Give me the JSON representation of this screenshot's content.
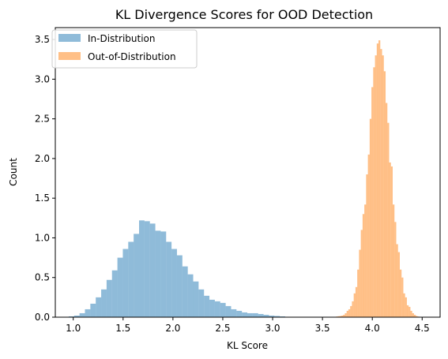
{
  "chart_data": {
    "type": "histogram",
    "title": "KL Divergence Scores for OOD Detection",
    "xlabel": "KL Score",
    "ylabel": "Count",
    "xlim": [
      0.82,
      4.68
    ],
    "ylim": [
      0,
      3.65
    ],
    "xticks": [
      1.0,
      1.5,
      2.0,
      2.5,
      3.0,
      3.5,
      4.0,
      4.5
    ],
    "xtick_labels": [
      "1.0",
      "1.5",
      "2.0",
      "2.5",
      "3.0",
      "3.5",
      "4.0",
      "4.5"
    ],
    "yticks": [
      0.0,
      0.5,
      1.0,
      1.5,
      2.0,
      2.5,
      3.0,
      3.5
    ],
    "ytick_labels": [
      "0.0",
      "0.5",
      "1.0",
      "1.5",
      "2.0",
      "2.5",
      "3.0",
      "3.5"
    ],
    "legend": {
      "placement": "top-left",
      "entries": [
        "In-Distribution",
        "Out-of-Distribution"
      ]
    },
    "series": [
      {
        "name": "In-Distribution",
        "color": "#1f77b4",
        "alpha": 0.5,
        "bin_start": 0.9,
        "bin_width": 0.0543,
        "values": [
          0.005,
          0.01,
          0.02,
          0.05,
          0.1,
          0.17,
          0.25,
          0.35,
          0.47,
          0.59,
          0.75,
          0.86,
          0.95,
          1.05,
          1.22,
          1.21,
          1.18,
          1.09,
          1.08,
          0.95,
          0.86,
          0.78,
          0.64,
          0.54,
          0.45,
          0.35,
          0.27,
          0.22,
          0.2,
          0.18,
          0.14,
          0.1,
          0.08,
          0.06,
          0.05,
          0.05,
          0.04,
          0.03,
          0.02,
          0.015,
          0.01,
          0.005,
          0.003
        ]
      },
      {
        "name": "Out-of-Distribution",
        "color": "#ff7f0e",
        "alpha": 0.5,
        "bin_start": 3.6,
        "bin_width": 0.01778,
        "values": [
          0.003,
          0.005,
          0.008,
          0.012,
          0.015,
          0.02,
          0.03,
          0.05,
          0.08,
          0.1,
          0.14,
          0.2,
          0.3,
          0.38,
          0.6,
          0.85,
          1.1,
          1.3,
          1.42,
          1.8,
          2.05,
          2.5,
          2.9,
          3.15,
          3.3,
          3.45,
          3.49,
          3.38,
          3.3,
          3.1,
          2.7,
          2.45,
          1.95,
          1.9,
          1.42,
          1.2,
          0.92,
          0.82,
          0.6,
          0.5,
          0.3,
          0.25,
          0.15,
          0.13,
          0.08,
          0.05,
          0.03,
          0.015,
          0.008,
          0.004,
          0.002
        ]
      }
    ]
  }
}
